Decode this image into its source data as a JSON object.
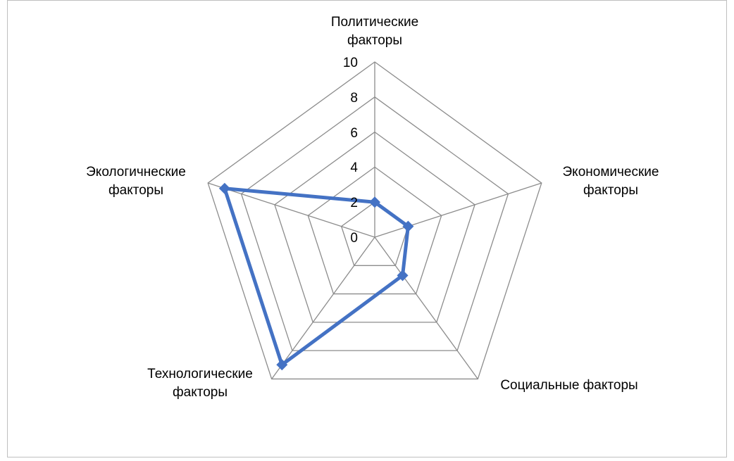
{
  "chart_data": {
    "type": "radar",
    "categories": [
      "Политические\nфакторы",
      "Экономические\nфакторы",
      "Социальные факторы",
      "Технологические\nфакторы",
      "Экологичнеские\nфакторы"
    ],
    "series": [
      {
        "name": null,
        "color": "#4472c4",
        "values": [
          2,
          2,
          2.7,
          9,
          9
        ]
      }
    ],
    "ylim": [
      0,
      10
    ],
    "yticks": [
      0,
      2,
      4,
      6,
      8,
      10
    ],
    "grid": true
  }
}
